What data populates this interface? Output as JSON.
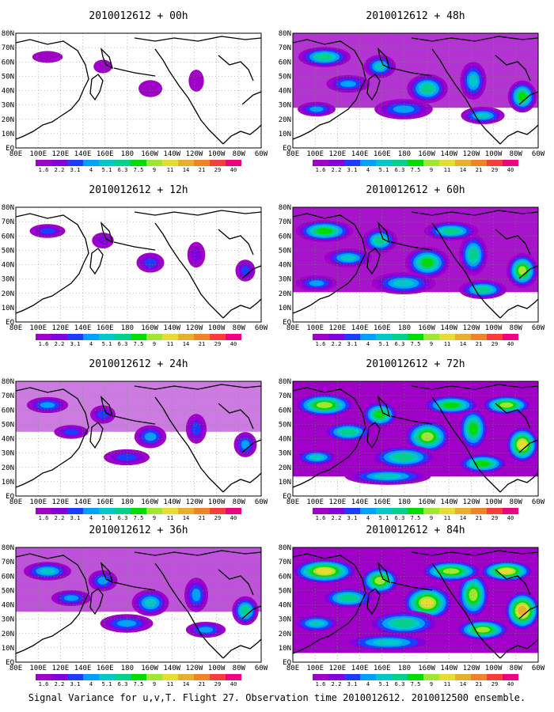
{
  "figure": {
    "caption": "Signal Variance for u,v,T. Flight 27. Observation time 2010012612. 2010012500 ensemble."
  },
  "panels": [
    {
      "title": "2010012612 + 00h",
      "intensity": 0.05
    },
    {
      "title": "2010012612 + 12h",
      "intensity": 0.18
    },
    {
      "title": "2010012612 + 24h",
      "intensity": 0.32
    },
    {
      "title": "2010012612 + 36h",
      "intensity": 0.48
    },
    {
      "title": "2010012612 + 48h",
      "intensity": 0.6
    },
    {
      "title": "2010012612 + 60h",
      "intensity": 0.72
    },
    {
      "title": "2010012612 + 72h",
      "intensity": 0.84
    },
    {
      "title": "2010012612 + 84h",
      "intensity": 0.96
    }
  ],
  "axes": {
    "x_ticks": [
      "80E",
      "100E",
      "120E",
      "140E",
      "160E",
      "180",
      "160W",
      "140W",
      "120W",
      "100W",
      "80W",
      "60W"
    ],
    "y_ticks": [
      "80N",
      "70N",
      "60N",
      "50N",
      "40N",
      "30N",
      "20N",
      "10N",
      "EQ"
    ]
  },
  "colorbar": {
    "labels": [
      "1.6",
      "2.2",
      "3.1",
      "4",
      "5.1",
      "6.3",
      "7.5",
      "9",
      "11",
      "14",
      "21",
      "29",
      "40"
    ],
    "colors": [
      "#a000c8",
      "#8200dc",
      "#1e3cff",
      "#00a0ff",
      "#00c8c8",
      "#00d28c",
      "#00dc00",
      "#a0e632",
      "#e6dc32",
      "#e6af2d",
      "#f08228",
      "#fa3c3c",
      "#f00082"
    ]
  }
}
